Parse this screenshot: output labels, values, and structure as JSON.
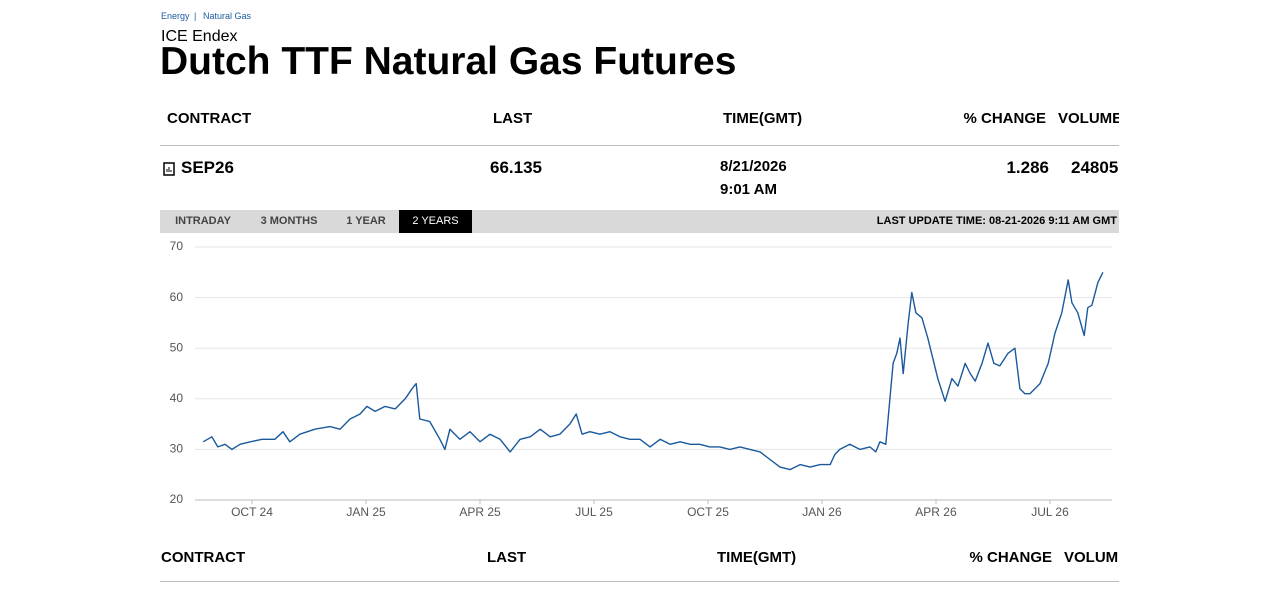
{
  "breadcrumb": [
    "Energy",
    "Natural Gas"
  ],
  "header": {
    "exchange": "ICE Endex",
    "title": "Dutch TTF Natural Gas Futures"
  },
  "table": {
    "columns": [
      "CONTRACT",
      "LAST",
      "TIME(GMT)",
      "% CHANGE",
      "VOLUME"
    ],
    "row": {
      "contract": "SEP26",
      "last": "66.135",
      "date": "8/21/2026",
      "time": "9:01 AM",
      "change": "1.286",
      "volume": "24805"
    }
  },
  "tabs": [
    "INTRADAY",
    "3 MONTHS",
    "1 YEAR",
    "2 YEARS"
  ],
  "active_tab": 3,
  "last_update": "LAST UPDATE TIME: 08-21-2026 9:11 AM GMT",
  "chart_data": {
    "type": "line",
    "color": "#1a5a9c",
    "grid": true,
    "xlim": [
      2024.625,
      2026.636
    ],
    "ylim": [
      20,
      70
    ],
    "yticks": [
      20,
      30,
      40,
      50,
      60,
      70
    ],
    "xticks": [
      {
        "value": 2024.75,
        "label": "OCT 24"
      },
      {
        "value": 2025.0,
        "label": "JAN 25"
      },
      {
        "value": 2025.25,
        "label": "APR 25"
      },
      {
        "value": 2025.5,
        "label": "JUL 25"
      },
      {
        "value": 2025.75,
        "label": "OCT 25"
      },
      {
        "value": 2026.0,
        "label": "JAN 26"
      },
      {
        "value": 2026.25,
        "label": "APR 26"
      },
      {
        "value": 2026.5,
        "label": "JUL 26"
      }
    ],
    "x": [
      2024.643,
      2024.662,
      2024.675,
      2024.691,
      2024.706,
      2024.724,
      2024.746,
      2024.772,
      2024.8,
      2024.818,
      2024.833,
      2024.855,
      2024.888,
      2024.921,
      2024.943,
      2024.965,
      2024.987,
      2025.002,
      2025.02,
      2025.042,
      2025.064,
      2025.086,
      2025.101,
      2025.11,
      2025.118,
      2025.14,
      2025.162,
      2025.173,
      2025.184,
      2025.206,
      2025.228,
      2025.25,
      2025.272,
      2025.294,
      2025.316,
      2025.338,
      2025.36,
      2025.382,
      2025.404,
      2025.425,
      2025.447,
      2025.461,
      2025.474,
      2025.491,
      2025.513,
      2025.535,
      2025.557,
      2025.579,
      2025.601,
      2025.623,
      2025.645,
      2025.667,
      2025.689,
      2025.711,
      2025.732,
      2025.754,
      2025.776,
      2025.798,
      2025.82,
      2025.842,
      2025.864,
      2025.886,
      2025.908,
      2025.93,
      2025.952,
      2025.974,
      2025.996,
      2026.018,
      2026.028,
      2026.039,
      2026.061,
      2026.083,
      2026.105,
      2026.118,
      2026.127,
      2026.14,
      2026.149,
      2026.156,
      2026.164,
      2026.171,
      2026.178,
      2026.189,
      2026.197,
      2026.206,
      2026.219,
      2026.232,
      2026.243,
      2026.254,
      2026.27,
      2026.285,
      2026.298,
      2026.314,
      2026.325,
      2026.336,
      2026.351,
      2026.364,
      2026.377,
      2026.39,
      2026.408,
      2026.423,
      2026.434,
      2026.445,
      2026.456,
      2026.478,
      2026.496,
      2026.511,
      2026.526,
      2026.54,
      2026.548,
      2026.561,
      2026.575,
      2026.583,
      2026.592,
      2026.605,
      2026.616
    ],
    "values": [
      31.5,
      32.5,
      30.5,
      31,
      30,
      31,
      31.5,
      32,
      32,
      33.5,
      31.5,
      33,
      34,
      34.5,
      34,
      36,
      37,
      38.5,
      37.5,
      38.5,
      38,
      40,
      42,
      43,
      36,
      35.5,
      32,
      30,
      34,
      32,
      33.5,
      31.5,
      33,
      32,
      29.5,
      32,
      32.5,
      34,
      32.5,
      33,
      35,
      37,
      33,
      33.5,
      33,
      33.5,
      32.5,
      32,
      32,
      30.5,
      32,
      31,
      31.5,
      31,
      31,
      30.5,
      30.5,
      30,
      30.5,
      30,
      29.5,
      28,
      26.5,
      26,
      27,
      26.5,
      27,
      27,
      29,
      30,
      31,
      30,
      30.5,
      29.5,
      31.5,
      31,
      40,
      47,
      49,
      52,
      45,
      55,
      61,
      57,
      56,
      52,
      48,
      44,
      39.5,
      44,
      42.5,
      47,
      45,
      43.5,
      47,
      51,
      47,
      46.5,
      49,
      50,
      42,
      41,
      41,
      43,
      47,
      53,
      57,
      63.5,
      59,
      57,
      52.5,
      58,
      58.5,
      63,
      65
    ]
  }
}
